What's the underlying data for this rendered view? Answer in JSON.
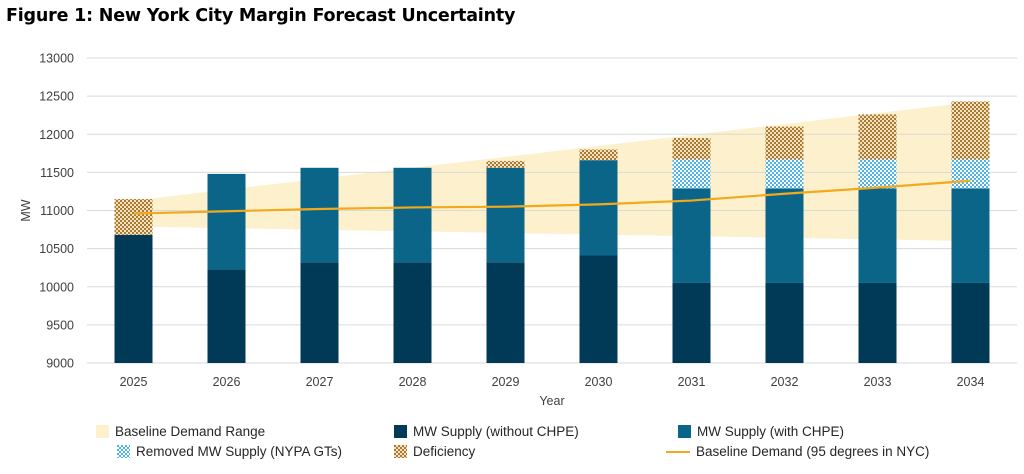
{
  "title": "Figure 1: New York City Margin Forecast Uncertainty",
  "colors": {
    "supply_without": "#003a57",
    "supply_with": "#0b6589",
    "removed_dot": "#4db3e6",
    "deficiency": "#b8893c",
    "range_fill": "#fdf0cc",
    "baseline_line": "#f2a91c",
    "grid": "#d9d9d9"
  },
  "chart_data": {
    "type": "bar",
    "xlabel": "Year",
    "ylabel": "MW",
    "ylim": [
      9000,
      13000
    ],
    "yticks": [
      9000,
      9500,
      10000,
      10500,
      11000,
      11500,
      12000,
      12500,
      13000
    ],
    "categories": [
      "2025",
      "2026",
      "2027",
      "2028",
      "2029",
      "2030",
      "2031",
      "2032",
      "2033",
      "2034"
    ],
    "series": [
      {
        "name": "MW Supply (without CHPE)",
        "kind": "bar",
        "values": [
          10680,
          10230,
          10320,
          10320,
          10320,
          10410,
          10050,
          10050,
          10050,
          10050
        ]
      },
      {
        "name": "MW Supply (with CHPE)",
        "kind": "bar_top",
        "values": [
          10680,
          11480,
          11560,
          11560,
          11560,
          11660,
          11290,
          11290,
          11290,
          11290
        ]
      },
      {
        "name": "Removed MW Supply (NYPA GTs)",
        "kind": "bar_top",
        "values": [
          null,
          null,
          null,
          null,
          null,
          null,
          11670,
          11670,
          11670,
          11670
        ]
      },
      {
        "name": "Deficiency",
        "kind": "bar_top",
        "values": [
          11150,
          null,
          null,
          null,
          11650,
          11800,
          11950,
          12100,
          12260,
          12430
        ]
      },
      {
        "name": "Baseline Demand (95 degrees in NYC)",
        "kind": "line",
        "values": [
          10960,
          10990,
          11020,
          11040,
          11050,
          11080,
          11130,
          11220,
          11300,
          11390
        ]
      },
      {
        "name": "Baseline Demand Range",
        "kind": "band",
        "upper": [
          11130,
          null,
          null,
          null,
          null,
          null,
          null,
          null,
          null,
          12420
        ],
        "lower": [
          10790,
          null,
          null,
          null,
          null,
          null,
          null,
          null,
          null,
          10600
        ]
      }
    ],
    "legend": [
      "Baseline Demand Range",
      "MW Supply (without CHPE)",
      "MW Supply (with CHPE)",
      "Removed MW Supply (NYPA GTs)",
      "Deficiency",
      "Baseline Demand (95 degrees in NYC)"
    ],
    "legend_position": "bottom",
    "grid": true
  }
}
